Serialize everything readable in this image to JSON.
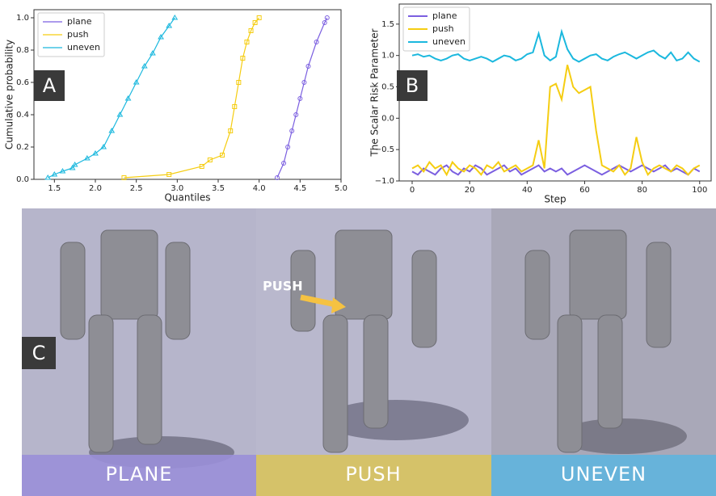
{
  "chart_data": [
    {
      "type": "line",
      "xlabel": "Quantiles",
      "ylabel": "Cumulative probability",
      "xlim": [
        1.25,
        5.0
      ],
      "ylim": [
        0,
        1.05
      ],
      "xticks": [
        {
          "value": 1.5,
          "label": "1.5"
        },
        {
          "value": 2.0,
          "label": "2.0"
        },
        {
          "value": 2.5,
          "label": "2.5"
        },
        {
          "value": 3.0,
          "label": "3.0"
        },
        {
          "value": 3.5,
          "label": "3.5"
        },
        {
          "value": 4.0,
          "label": "4.0"
        },
        {
          "value": 4.5,
          "label": "4.5"
        },
        {
          "value": 5.0,
          "label": "5.0"
        }
      ],
      "yticks": [
        {
          "value": 0,
          "label": "0.0"
        },
        {
          "value": 0.2,
          "label": "0.2"
        },
        {
          "value": 0.4,
          "label": "0.4"
        },
        {
          "value": 0.6,
          "label": "0.6"
        },
        {
          "value": 0.8,
          "label": "0.8"
        },
        {
          "value": 1.0,
          "label": "1.0"
        }
      ],
      "legend": "upper left",
      "series": [
        {
          "name": "plane",
          "color": "#7b5fe0",
          "marker": "circle",
          "x": [
            4.22,
            4.3,
            4.35,
            4.4,
            4.45,
            4.5,
            4.55,
            4.6,
            4.7,
            4.8,
            4.83
          ],
          "values": [
            0.01,
            0.1,
            0.2,
            0.3,
            0.4,
            0.5,
            0.6,
            0.7,
            0.85,
            0.97,
            1.0
          ]
        },
        {
          "name": "push",
          "color": "#f5cd12",
          "marker": "square",
          "x": [
            2.35,
            2.9,
            3.3,
            3.4,
            3.55,
            3.65,
            3.7,
            3.75,
            3.8,
            3.85,
            3.9,
            3.95,
            4.0
          ],
          "values": [
            0.01,
            0.03,
            0.08,
            0.12,
            0.15,
            0.3,
            0.45,
            0.6,
            0.75,
            0.85,
            0.92,
            0.97,
            1.0
          ]
        },
        {
          "name": "uneven",
          "color": "#1bb8de",
          "marker": "triangle",
          "x": [
            1.42,
            1.5,
            1.6,
            1.72,
            1.75,
            1.9,
            2.0,
            2.1,
            2.2,
            2.3,
            2.4,
            2.5,
            2.6,
            2.7,
            2.8,
            2.9,
            2.97
          ],
          "values": [
            0.01,
            0.03,
            0.05,
            0.07,
            0.09,
            0.13,
            0.16,
            0.2,
            0.3,
            0.4,
            0.5,
            0.6,
            0.7,
            0.78,
            0.88,
            0.95,
            1.0
          ]
        }
      ]
    },
    {
      "type": "line",
      "xlabel": "Step",
      "ylabel": "The Scalar Risk Parameter",
      "xlim": [
        -4.5,
        104
      ],
      "ylim": [
        -1.0,
        1.82
      ],
      "xticks": [
        0,
        20,
        40,
        60,
        80,
        100
      ],
      "yticks": [
        {
          "value": -1.0,
          "label": "−1.0"
        },
        {
          "value": -0.5,
          "label": "−0.5"
        },
        {
          "value": 0,
          "label": "0.0"
        },
        {
          "value": 0.5,
          "label": "0.5"
        },
        {
          "value": 1.0,
          "label": "1.0"
        },
        {
          "value": 1.5,
          "label": "1.5"
        }
      ],
      "legend": "upper left",
      "x": [
        0,
        2,
        4,
        6,
        8,
        10,
        12,
        14,
        16,
        18,
        20,
        22,
        24,
        26,
        28,
        30,
        32,
        34,
        36,
        38,
        40,
        42,
        44,
        46,
        48,
        50,
        52,
        54,
        56,
        58,
        60,
        62,
        64,
        66,
        68,
        70,
        72,
        74,
        76,
        78,
        80,
        82,
        84,
        86,
        88,
        90,
        92,
        94,
        96,
        98,
        100
      ],
      "series": [
        {
          "name": "plane",
          "color": "#7b5fe0",
          "values": [
            -0.85,
            -0.9,
            -0.8,
            -0.85,
            -0.9,
            -0.8,
            -0.75,
            -0.85,
            -0.9,
            -0.8,
            -0.85,
            -0.75,
            -0.8,
            -0.9,
            -0.85,
            -0.8,
            -0.75,
            -0.85,
            -0.8,
            -0.9,
            -0.85,
            -0.8,
            -0.75,
            -0.85,
            -0.8,
            -0.85,
            -0.8,
            -0.9,
            -0.85,
            -0.8,
            -0.75,
            -0.8,
            -0.85,
            -0.9,
            -0.85,
            -0.8,
            -0.75,
            -0.8,
            -0.85,
            -0.8,
            -0.75,
            -0.8,
            -0.85,
            -0.8,
            -0.75,
            -0.85,
            -0.8,
            -0.85,
            -0.9,
            -0.8,
            -0.85
          ]
        },
        {
          "name": "push",
          "color": "#f5cd12",
          "values": [
            -0.8,
            -0.75,
            -0.85,
            -0.7,
            -0.8,
            -0.75,
            -0.9,
            -0.7,
            -0.8,
            -0.85,
            -0.75,
            -0.8,
            -0.9,
            -0.75,
            -0.8,
            -0.7,
            -0.85,
            -0.8,
            -0.75,
            -0.85,
            -0.8,
            -0.75,
            -0.35,
            -0.8,
            0.5,
            0.55,
            0.3,
            0.85,
            0.5,
            0.4,
            0.45,
            0.5,
            -0.2,
            -0.75,
            -0.8,
            -0.85,
            -0.75,
            -0.9,
            -0.8,
            -0.3,
            -0.7,
            -0.9,
            -0.8,
            -0.75,
            -0.8,
            -0.85,
            -0.75,
            -0.8,
            -0.9,
            -0.8,
            -0.75
          ]
        },
        {
          "name": "uneven",
          "color": "#1bb8de",
          "values": [
            1.0,
            1.02,
            0.98,
            1.0,
            0.95,
            0.92,
            0.95,
            1.0,
            1.02,
            0.95,
            0.92,
            0.95,
            0.98,
            0.95,
            0.9,
            0.95,
            1.0,
            0.98,
            0.92,
            0.95,
            1.02,
            1.05,
            1.35,
            1.0,
            0.92,
            0.98,
            1.38,
            1.1,
            0.95,
            0.9,
            0.95,
            1.0,
            1.02,
            0.95,
            0.92,
            0.98,
            1.02,
            1.05,
            1.0,
            0.95,
            1.0,
            1.05,
            1.08,
            1.0,
            0.95,
            1.05,
            0.92,
            0.95,
            1.05,
            0.95,
            0.9
          ]
        }
      ]
    }
  ],
  "panel_labels": [
    "A",
    "B",
    "C"
  ],
  "scenes": [
    "PLANE",
    "PUSH",
    "UNEVEN"
  ],
  "annotation": "PUSH"
}
